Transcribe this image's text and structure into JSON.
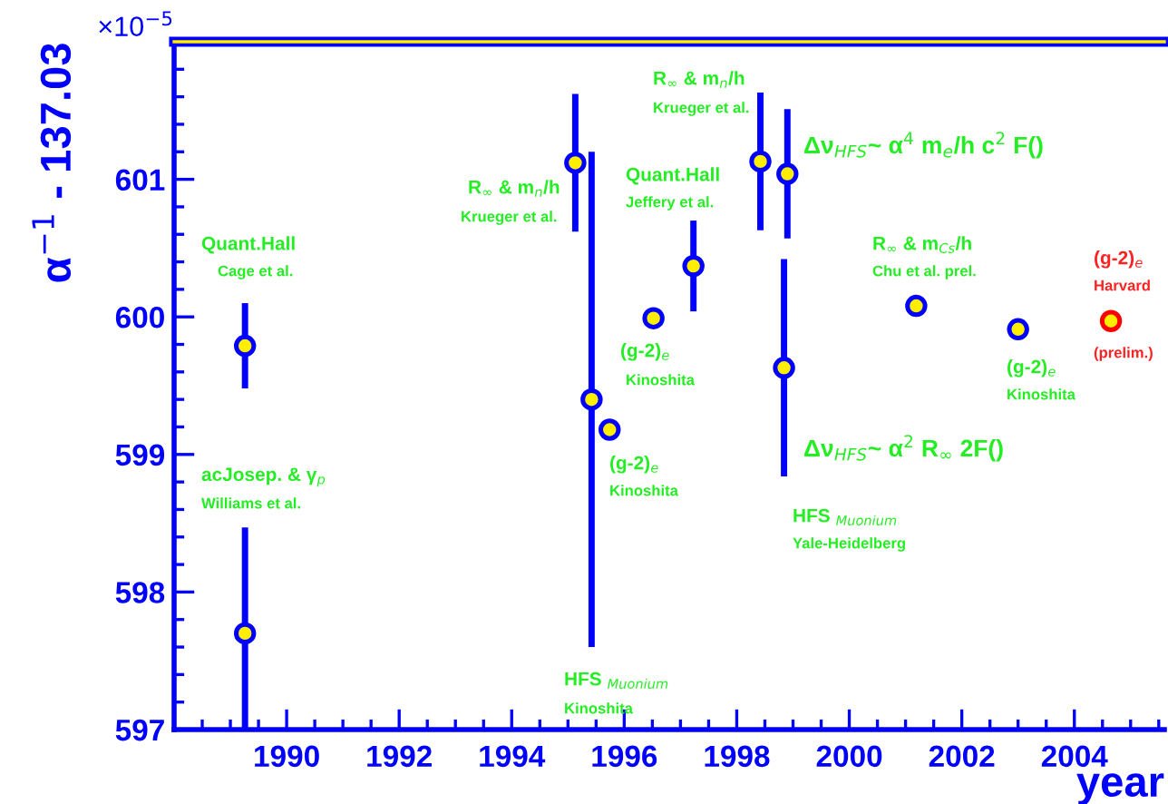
{
  "chart_data": {
    "type": "scatter",
    "xlabel": "year",
    "ylabel": "α$^{−1}$ - 137.03",
    "xlim": [
      1988,
      2005.6
    ],
    "xticks": [
      1990,
      1992,
      1994,
      1996,
      1998,
      2000,
      2002,
      2004
    ],
    "ylim": [
      597,
      602
    ],
    "yticks": [
      597,
      598,
      599,
      600,
      601
    ],
    "grid": false,
    "marker": "circle",
    "series": [
      {
        "color": "#0000ff",
        "x": [
          1989.26,
          1989.26,
          1995.13,
          1995.42,
          1995.74,
          1996.52,
          1997.23,
          1998.42,
          1998.9,
          1998.84,
          2001.19,
          2003.0
        ],
        "values": [
          599.79,
          597.7,
          601.12,
          599.4,
          599.18,
          599.99,
          600.37,
          601.13,
          601.04,
          599.63,
          600.08,
          599.91
        ],
        "errors": [
          0.31,
          0.77,
          0.5,
          1.8,
          0.05,
          0.04,
          0.33,
          0.5,
          0.47,
          0.79,
          0.04,
          0.03
        ]
      },
      {
        "color": "#ff0000",
        "x": [
          2004.65
        ],
        "values": [
          599.97
        ],
        "errors": [
          0.02
        ]
      }
    ],
    "annotations": [
      "×10$^{−5}$",
      "Quant.Hall",
      "Cage et al.",
      "acJosep. & γ$_{p}$",
      "Williams et al.",
      "R$_{∞}$ & m$_{n}$/h",
      "Krueger et al.",
      "HFS $_{Muonium}$",
      "Kinoshita",
      "(g-2)$_{e}$",
      "Kinoshita",
      "(g-2)$_{e}$",
      "Kinoshita",
      "Quant.Hall",
      "Jeffery et al.",
      "R$_{∞}$ & m$_{n}$/h",
      "Krueger et al.",
      "Δν$_{HFS}$~ α$^{4}$ m$_{e}$/h c$^{2}$ F()",
      "Δν$_{HFS}$~ α$^{2}$ R$_{∞}$ 2F()",
      "HFS $_{Muonium}$",
      "Yale-Heidelberg",
      "R$_{∞}$ & m$_{Cs}$/h",
      "Chu et al. prel.",
      "(g-2)$_{e}$",
      "Kinoshita",
      "(g-2)$_{e}$",
      "Harvard",
      "(prelim.)"
    ]
  }
}
